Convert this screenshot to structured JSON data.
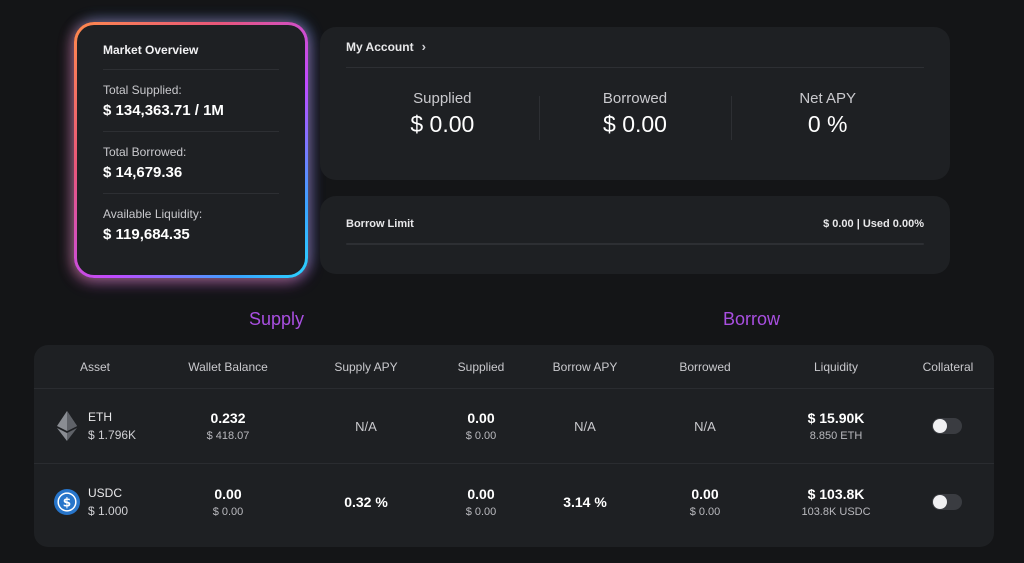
{
  "market_overview": {
    "title": "Market Overview",
    "rows": [
      {
        "label": "Total Supplied:",
        "value": "$ 134,363.71 / 1M"
      },
      {
        "label": "Total Borrowed:",
        "value": "$ 14,679.36"
      },
      {
        "label": "Available Liquidity:",
        "value": "$ 119,684.35"
      }
    ]
  },
  "my_account": {
    "title": "My Account",
    "stats": [
      {
        "label": "Supplied",
        "value": "$ 0.00"
      },
      {
        "label": "Borrowed",
        "value": "$ 0.00"
      },
      {
        "label": "Net APY",
        "value": "0 %"
      }
    ]
  },
  "borrow_limit": {
    "label": "Borrow Limit",
    "value": "$ 0.00 | Used 0.00%",
    "used_fraction": 0.0
  },
  "sections": {
    "supply": "Supply",
    "borrow": "Borrow"
  },
  "table": {
    "headers": [
      "Asset",
      "Wallet Balance",
      "Supply APY",
      "Supplied",
      "Borrow APY",
      "Borrowed",
      "Liquidity",
      "Collateral"
    ],
    "rows": [
      {
        "icon": "ethereum-icon",
        "asset": "ETH",
        "price": "$ 1.796K",
        "wallet_main": "0.232",
        "wallet_sub": "$ 418.07",
        "supply_apy": "N/A",
        "supplied_main": "0.00",
        "supplied_sub": "$ 0.00",
        "borrow_apy": "N/A",
        "borrowed": "N/A",
        "liquidity_main": "$ 15.90K",
        "liquidity_sub": "8.850 ETH",
        "collateral": false
      },
      {
        "icon": "usdc-icon",
        "asset": "USDC",
        "price": "$ 1.000",
        "wallet_main": "0.00",
        "wallet_sub": "$ 0.00",
        "supply_apy": "0.32 %",
        "supplied_main": "0.00",
        "supplied_sub": "$ 0.00",
        "borrow_apy": "3.14 %",
        "borrowed_main": "0.00",
        "borrowed_sub": "$ 0.00",
        "liquidity_main": "$ 103.8K",
        "liquidity_sub": "103.8K USDC",
        "collateral": false
      }
    ]
  },
  "colors": {
    "accent": "#a84fe0",
    "card": "#1e2023",
    "background": "#141517"
  }
}
